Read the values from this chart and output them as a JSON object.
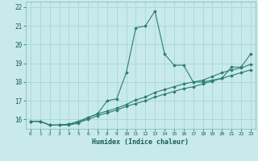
{
  "xlabel": "Humidex (Indice chaleur)",
  "background_color": "#c8eaea",
  "grid_color": "#a8d8d8",
  "line_color": "#2e7d6e",
  "xlim": [
    -0.5,
    23.5
  ],
  "ylim": [
    15.5,
    22.3
  ],
  "x_ticks": [
    0,
    1,
    2,
    3,
    4,
    5,
    6,
    7,
    8,
    9,
    10,
    11,
    12,
    13,
    14,
    15,
    16,
    17,
    18,
    19,
    20,
    21,
    22,
    23
  ],
  "y_ticks": [
    16,
    17,
    18,
    19,
    20,
    21,
    22
  ],
  "series": [
    [
      15.9,
      15.9,
      15.7,
      15.7,
      15.7,
      15.8,
      16.1,
      16.3,
      17.0,
      17.1,
      18.5,
      20.9,
      21.0,
      21.8,
      19.5,
      18.9,
      18.9,
      18.0,
      18.0,
      18.1,
      18.2,
      18.8,
      18.8,
      19.5
    ],
    [
      15.9,
      15.9,
      15.7,
      15.7,
      15.75,
      15.85,
      16.0,
      16.2,
      16.35,
      16.5,
      16.7,
      16.85,
      17.0,
      17.2,
      17.35,
      17.5,
      17.65,
      17.75,
      17.9,
      18.05,
      18.2,
      18.35,
      18.5,
      18.65
    ],
    [
      15.9,
      15.9,
      15.7,
      15.7,
      15.75,
      15.9,
      16.1,
      16.3,
      16.45,
      16.6,
      16.8,
      17.05,
      17.2,
      17.45,
      17.6,
      17.75,
      17.9,
      18.0,
      18.1,
      18.3,
      18.5,
      18.65,
      18.75,
      18.95
    ]
  ]
}
